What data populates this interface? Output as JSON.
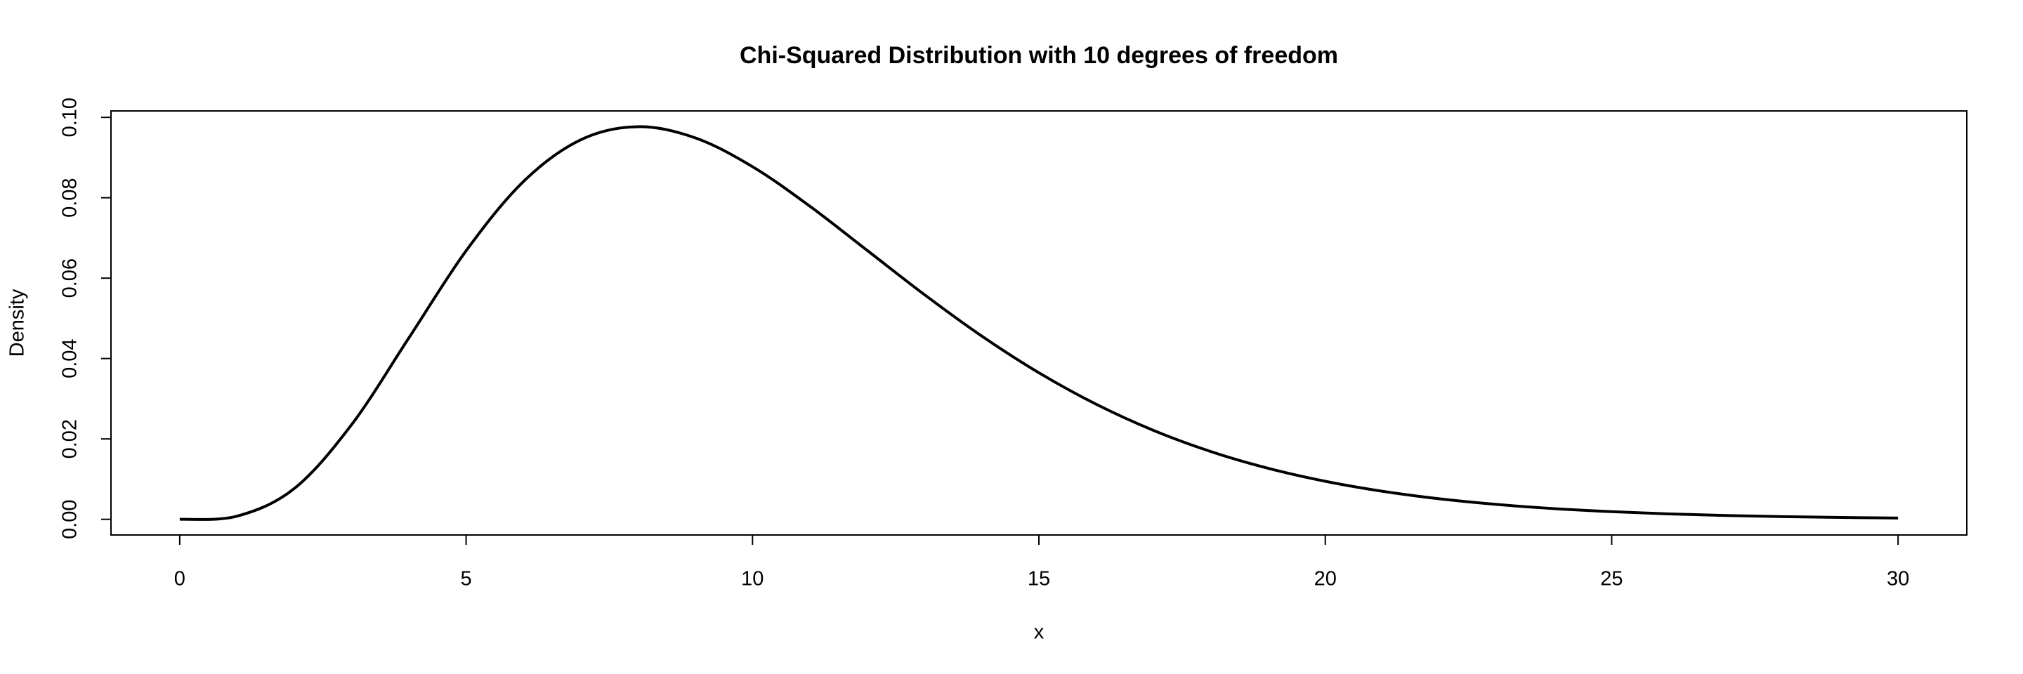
{
  "chart_data": {
    "type": "line",
    "title": "Chi-Squared Distribution with 10 degrees of freedom",
    "x_label": "x",
    "y_label": "Density",
    "x": [
      0,
      1,
      2,
      3,
      4,
      5,
      6,
      7,
      8,
      9,
      10,
      11,
      12,
      13,
      14,
      15,
      16,
      17,
      18,
      19,
      20,
      21,
      22,
      23,
      24,
      25,
      26,
      27,
      28,
      29,
      30
    ],
    "series": [
      {
        "color": "#000000",
        "values": [
          0,
          0.00079,
          0.00766,
          0.02353,
          0.04511,
          0.0668,
          0.08402,
          0.0944,
          0.09768,
          0.0949,
          0.08773,
          0.07791,
          0.06693,
          0.05591,
          0.04561,
          0.03646,
          0.02863,
          0.02213,
          0.01687,
          0.0127,
          0.00946,
          0.00697,
          0.00509,
          0.00369,
          0.00265,
          0.0019,
          0.00134,
          0.00095,
          0.00067,
          0.00046,
          0.00032
        ]
      }
    ],
    "xlim": [
      -1.2,
      31.2
    ],
    "ylim": [
      -0.0039,
      0.1016
    ],
    "xticks": [
      0,
      5,
      10,
      15,
      20,
      25,
      30
    ],
    "yticks": [
      {
        "value": 0,
        "label": "0.00"
      },
      {
        "value": 0.02,
        "label": "0.02"
      },
      {
        "value": 0.04,
        "label": "0.04"
      },
      {
        "value": 0.06,
        "label": "0.06"
      },
      {
        "value": 0.08,
        "label": "0.08"
      },
      {
        "value": 0.1,
        "label": "0.10"
      }
    ]
  }
}
